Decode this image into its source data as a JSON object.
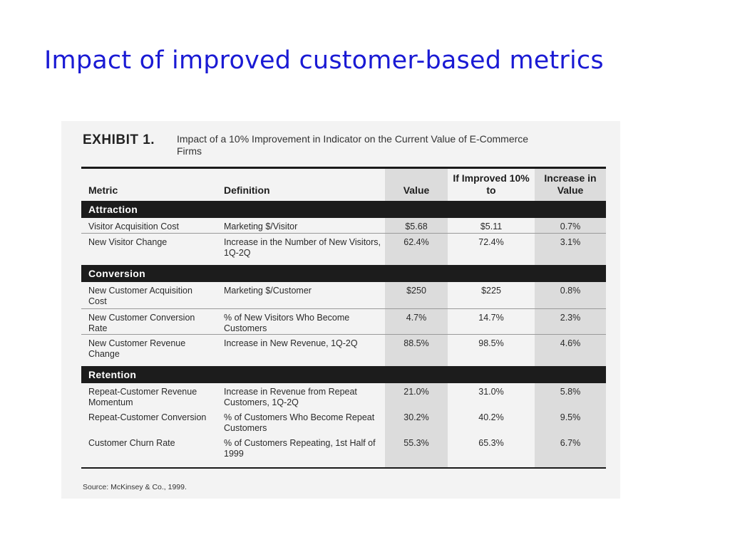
{
  "slide": {
    "title": "Impact of improved customer-based metrics"
  },
  "exhibit": {
    "label": "EXHIBIT 1.",
    "caption": "Impact of a 10% Improvement in Indicator on the Current Value of E-Commerce Firms",
    "source": "Source: McKinsey & Co., 1999."
  },
  "table": {
    "columns": {
      "metric": "Metric",
      "definition": "Definition",
      "value": "Value",
      "improved": "If Improved 10% to",
      "increase": "Increase in Value"
    },
    "sections": [
      {
        "name": "Attraction",
        "rows": [
          {
            "metric": "Visitor Acquisition Cost",
            "definition": "Marketing $/Visitor",
            "value": "$5.68",
            "improved": "$5.11",
            "increase": "0.7%"
          },
          {
            "metric": "New Visitor Change",
            "definition": "Increase in the Number of  New Visitors, 1Q-2Q",
            "value": "62.4%",
            "improved": "72.4%",
            "increase": "3.1%"
          }
        ]
      },
      {
        "name": "Conversion",
        "rows": [
          {
            "metric": "New Customer Acquisition Cost",
            "definition": "Marketing $/Customer",
            "value": "$250",
            "improved": "$225",
            "increase": "0.8%"
          },
          {
            "metric": "New Customer Conversion Rate",
            "definition": "% of New Visitors Who Become Customers",
            "value": "4.7%",
            "improved": "14.7%",
            "increase": "2.3%"
          },
          {
            "metric": "New Customer Revenue Change",
            "definition": "Increase in New Revenue, 1Q-2Q",
            "value": "88.5%",
            "improved": "98.5%",
            "increase": "4.6%"
          }
        ]
      },
      {
        "name": "Retention",
        "rows": [
          {
            "metric": "Repeat-Customer Revenue Momentum",
            "definition": "Increase in Revenue from Repeat Customers, 1Q-2Q",
            "value": "21.0%",
            "improved": "31.0%",
            "increase": "5.8%"
          },
          {
            "metric": "Repeat-Customer Conversion",
            "definition": "% of Customers Who Become Repeat Customers",
            "value": "30.2%",
            "improved": "40.2%",
            "increase": "9.5%"
          },
          {
            "metric": "Customer Churn Rate",
            "definition": "% of Customers Repeating, 1st Half of 1999",
            "value": "55.3%",
            "improved": "65.3%",
            "increase": "6.7%"
          }
        ]
      }
    ]
  }
}
